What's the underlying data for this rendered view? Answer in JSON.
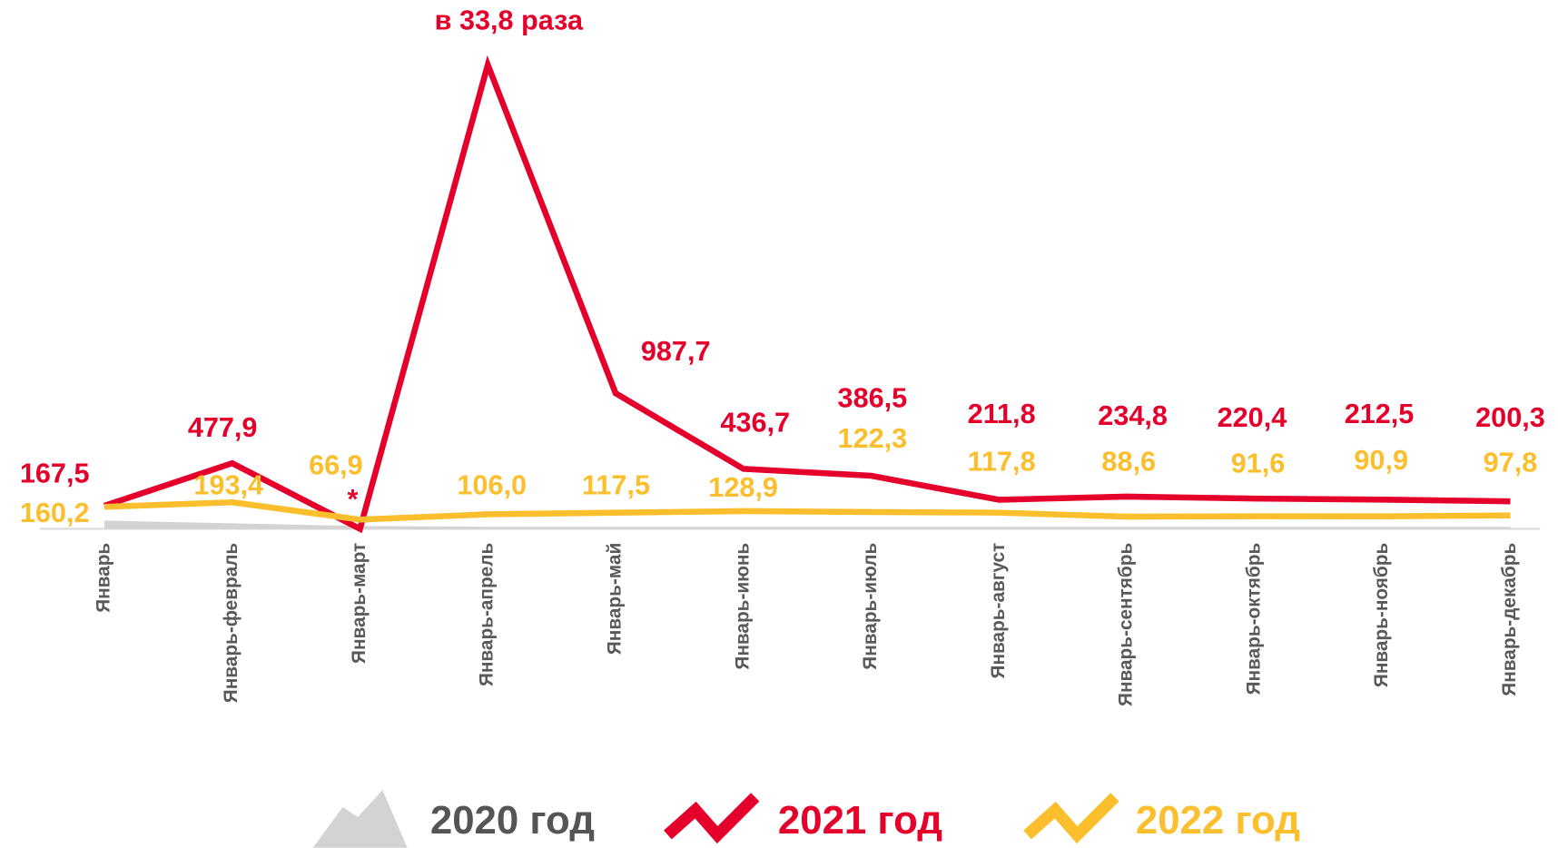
{
  "chart_data": {
    "type": "line",
    "categories": [
      "Январь",
      "Январь-февраль",
      "Январь-март",
      "Январь-апрель",
      "Январь-май",
      "Январь-июнь",
      "Январь-июль",
      "Январь-август",
      "Январь-сентябрь",
      "Январь-октябрь",
      "Январь-ноябрь",
      "Январь-декабрь"
    ],
    "ylim": [
      0,
      3850
    ],
    "series": [
      {
        "name": "2020 год",
        "color": "#d3d3d3",
        "kind": "area",
        "values": [
          60,
          40,
          20,
          15,
          15,
          15,
          15,
          15,
          15,
          15,
          15,
          15
        ]
      },
      {
        "name": "2021 год",
        "color": "#e4002b",
        "kind": "line",
        "values": [
          167.5,
          477.9,
          0,
          3380,
          987.7,
          436.7,
          386.5,
          211.8,
          234.8,
          220.4,
          212.5,
          200.3
        ],
        "value_labels": [
          "167,5",
          "477,9",
          "*",
          "в 33,8 раза",
          "987,7",
          "436,7",
          "386,5",
          "211,8",
          "234,8",
          "220,4",
          "212,5",
          "200,3"
        ]
      },
      {
        "name": "2022 год",
        "color": "#fbbf2d",
        "kind": "line",
        "values": [
          160.2,
          193.4,
          66.9,
          106.0,
          117.5,
          128.9,
          122.3,
          117.8,
          88.6,
          91.6,
          90.9,
          97.8
        ],
        "value_labels": [
          "160,2",
          "193,4",
          "66,9",
          "106,0",
          "117,5",
          "128,9",
          "122,3",
          "117,8",
          "88,6",
          "91,6",
          "90,9",
          "97,8"
        ]
      }
    ]
  }
}
